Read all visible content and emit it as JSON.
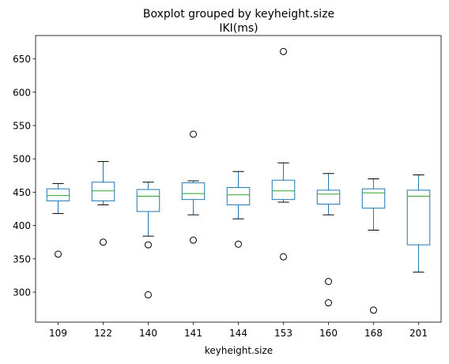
{
  "chart_data": {
    "type": "boxplot",
    "title": "Boxplot grouped by keyheight.size",
    "subtitle": "IKI(ms)",
    "xlabel": "keyheight.size",
    "ylabel": "",
    "ylim": [
      255,
      685
    ],
    "yticks": [
      300,
      350,
      400,
      450,
      500,
      550,
      600,
      650
    ],
    "grid": false,
    "categories": [
      "109",
      "122",
      "140",
      "141",
      "144",
      "153",
      "160",
      "168",
      "201"
    ],
    "boxes": [
      {
        "whisker_low": 418,
        "q1": 437,
        "median": 445,
        "q3": 455,
        "whisker_high": 463,
        "outliers": [
          357
        ]
      },
      {
        "whisker_low": 431,
        "q1": 437,
        "median": 452,
        "q3": 465,
        "whisker_high": 496,
        "outliers": [
          375
        ]
      },
      {
        "whisker_low": 384,
        "q1": 421,
        "median": 444,
        "q3": 454,
        "whisker_high": 465,
        "outliers": [
          371,
          296
        ]
      },
      {
        "whisker_low": 416,
        "q1": 439,
        "median": 448,
        "q3": 464,
        "whisker_high": 467,
        "outliers": [
          537,
          378
        ]
      },
      {
        "whisker_low": 410,
        "q1": 431,
        "median": 446,
        "q3": 457,
        "whisker_high": 481,
        "outliers": [
          372
        ]
      },
      {
        "whisker_low": 435,
        "q1": 439,
        "median": 452,
        "q3": 468,
        "whisker_high": 494,
        "outliers": [
          661,
          353
        ]
      },
      {
        "whisker_low": 416,
        "q1": 432,
        "median": 447,
        "q3": 453,
        "whisker_high": 478,
        "outliers": [
          316,
          284
        ]
      },
      {
        "whisker_low": 393,
        "q1": 426,
        "median": 449,
        "q3": 455,
        "whisker_high": 470,
        "outliers": [
          273
        ]
      },
      {
        "whisker_low": 330,
        "q1": 371,
        "median": 444,
        "q3": 453,
        "whisker_high": 476,
        "outliers": []
      }
    ],
    "colors": {
      "box": "#1f77b4",
      "median": "#2ca02c",
      "outlier": "#000000",
      "axis": "#000000"
    }
  }
}
